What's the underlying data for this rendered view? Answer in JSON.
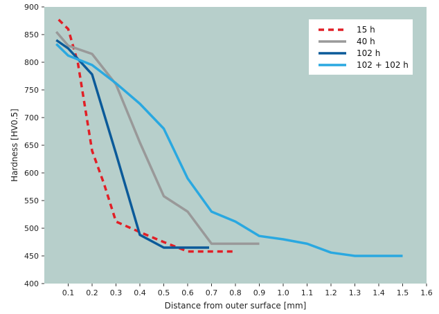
{
  "chart_data": {
    "type": "line",
    "title": "",
    "xlabel": "Distance from outer surface [mm]",
    "ylabel": "Hardness [HV0.5]",
    "xlim": [
      0.0,
      1.6
    ],
    "ylim": [
      400,
      900
    ],
    "xticks": [
      "0.1",
      "0.2",
      "0.3",
      "0.4",
      "0.5",
      "0.6",
      "0.7",
      "0.8",
      "0.9",
      "1.0",
      "1.1",
      "1.2",
      "1.3",
      "1.4",
      "1.5",
      "1.6"
    ],
    "yticks": [
      "400",
      "450",
      "500",
      "550",
      "600",
      "650",
      "700",
      "750",
      "800",
      "850",
      "900"
    ],
    "grid": false,
    "legend_position": "top-right",
    "background_color": "#b7cfcb",
    "series": [
      {
        "name": "15 h",
        "color": "#e11f26",
        "style": "dashed",
        "x": [
          0.06,
          0.1,
          0.14,
          0.2,
          0.25,
          0.3,
          0.4,
          0.5,
          0.6,
          0.7,
          0.8
        ],
        "y": [
          877,
          860,
          800,
          640,
          580,
          512,
          493,
          475,
          458,
          458,
          458
        ]
      },
      {
        "name": "40 h",
        "color": "#999999",
        "style": "solid",
        "x": [
          0.05,
          0.1,
          0.2,
          0.3,
          0.4,
          0.5,
          0.6,
          0.7,
          0.8,
          0.9
        ],
        "y": [
          855,
          830,
          815,
          760,
          655,
          558,
          530,
          472,
          472,
          472
        ]
      },
      {
        "name": "102 h",
        "color": "#0b5a99",
        "style": "solid",
        "x": [
          0.05,
          0.1,
          0.2,
          0.3,
          0.4,
          0.5,
          0.6,
          0.69
        ],
        "y": [
          840,
          825,
          778,
          635,
          488,
          465,
          465,
          465
        ]
      },
      {
        "name": "102 + 102 h",
        "color": "#2aa8e0",
        "style": "solid",
        "x": [
          0.05,
          0.1,
          0.2,
          0.3,
          0.4,
          0.5,
          0.6,
          0.7,
          0.8,
          0.9,
          1.0,
          1.1,
          1.2,
          1.3,
          1.4,
          1.5
        ],
        "y": [
          833,
          812,
          795,
          762,
          725,
          680,
          590,
          530,
          512,
          486,
          480,
          472,
          456,
          450,
          450,
          450
        ]
      }
    ]
  }
}
